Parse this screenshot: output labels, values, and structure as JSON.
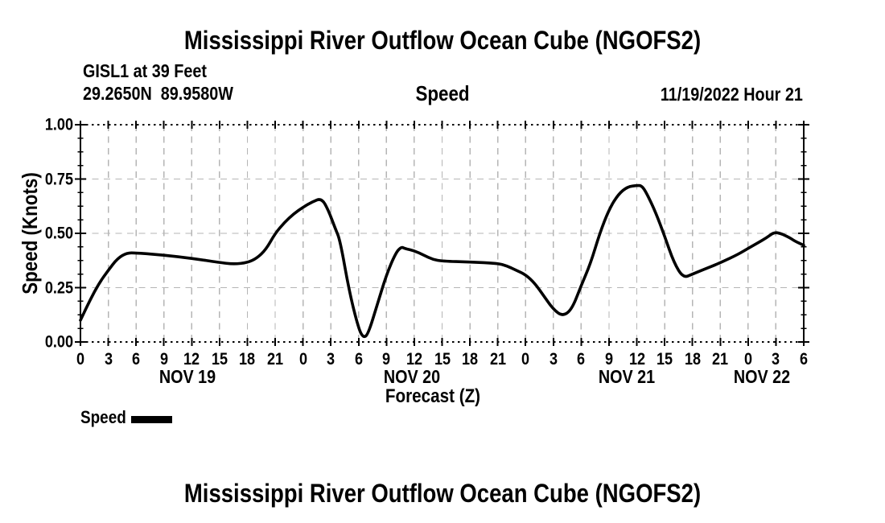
{
  "header": {
    "title": "Mississippi River Outflow Ocean Cube (NGOFS2)",
    "station_line": "GISL1 at 39 Feet",
    "coords_line": "29.2650N  89.9580W",
    "subtitle": "Speed",
    "datetime_line": "11/19/2022 Hour 21"
  },
  "footer": {
    "title": "Mississippi River Outflow Ocean Cube (NGOFS2)"
  },
  "legend": {
    "label": "Speed"
  },
  "colors": {
    "line": "#000000",
    "grid": "#b5b5b5",
    "axis": "#000000",
    "background": "#ffffff",
    "text": "#000000"
  },
  "chart_data": {
    "type": "line",
    "title": "Speed",
    "xlabel": "Forecast (Z)",
    "ylabel": "Speed (Knots)",
    "ylim": [
      0,
      1
    ],
    "xlim_hours": [
      0,
      78
    ],
    "grid": true,
    "legend_position": "bottom-left",
    "x_major_tick_step_hours": 3,
    "xtick_labels": [
      "0",
      "3",
      "6",
      "9",
      "12",
      "15",
      "18",
      "21",
      "0",
      "3",
      "6",
      "9",
      "12",
      "15",
      "18",
      "21",
      "0",
      "3",
      "6",
      "9",
      "12",
      "15",
      "18",
      "21",
      "0",
      "3",
      "6"
    ],
    "date_labels": [
      {
        "label": "NOV 19"
      },
      {
        "label": "NOV 20"
      },
      {
        "label": "NOV 21"
      },
      {
        "label": "NOV 22"
      }
    ],
    "yticks": [
      0,
      0.25,
      0.5,
      0.75,
      1
    ],
    "ytick_labels": [
      "0.00",
      "0.25",
      "0.50",
      "0.75",
      "1.00"
    ],
    "series": [
      {
        "name": "Speed",
        "units": "Knots",
        "color": "#000000",
        "x_hours": [
          0,
          1,
          2,
          3,
          4,
          5,
          6,
          9,
          12,
          15,
          16.5,
          18,
          19,
          20,
          21,
          22,
          23,
          24,
          25,
          26,
          26.7,
          27.5,
          28,
          29,
          30,
          30.5,
          31,
          32,
          33,
          34,
          34.6,
          35,
          36,
          37,
          38,
          39,
          42,
          45,
          46,
          47,
          48,
          49,
          50,
          51,
          52,
          53,
          54,
          55,
          56,
          57,
          58,
          59,
          60,
          60.5,
          61,
          62,
          63,
          64,
          65,
          66,
          67,
          69,
          71,
          72,
          73,
          74,
          74.8,
          75.5,
          76.5,
          77,
          78
        ],
        "values": [
          0.1,
          0.19,
          0.27,
          0.33,
          0.385,
          0.41,
          0.41,
          0.4,
          0.385,
          0.366,
          0.358,
          0.365,
          0.385,
          0.425,
          0.5,
          0.55,
          0.59,
          0.62,
          0.645,
          0.662,
          0.61,
          0.52,
          0.468,
          0.23,
          0.06,
          0.02,
          0.033,
          0.17,
          0.31,
          0.41,
          0.438,
          0.43,
          0.42,
          0.4,
          0.38,
          0.372,
          0.368,
          0.362,
          0.35,
          0.33,
          0.31,
          0.27,
          0.21,
          0.15,
          0.118,
          0.15,
          0.26,
          0.36,
          0.5,
          0.61,
          0.68,
          0.715,
          0.72,
          0.72,
          0.69,
          0.6,
          0.487,
          0.365,
          0.295,
          0.312,
          0.33,
          0.364,
          0.405,
          0.431,
          0.455,
          0.48,
          0.505,
          0.5,
          0.48,
          0.465,
          0.445
        ]
      }
    ]
  }
}
